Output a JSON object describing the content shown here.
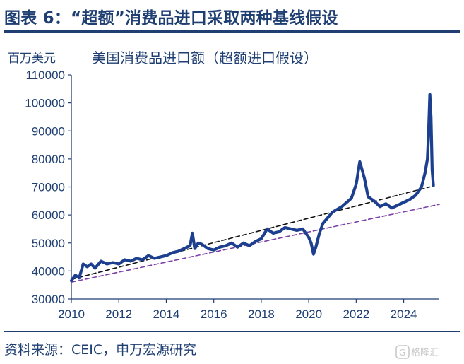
{
  "figure": {
    "title": "图表 6：“超额”消费品进口采取两种基线假设",
    "source": "资料来源：CEIC，申万宏源研究",
    "watermark_text": "格隆汇"
  },
  "colors": {
    "accent": "#1f3f73",
    "series_main": "#1d3f8f",
    "trend_high": "#111111",
    "trend_low": "#7b3fa6"
  },
  "chart_data": {
    "type": "line",
    "title": "美国消费品进口额（超额进口假设）",
    "unit_label": "百万美元",
    "xlabel": "",
    "ylabel": "",
    "xlim": [
      2010,
      2025.5
    ],
    "ylim": [
      30000,
      110000
    ],
    "xticks": [
      "2010",
      "2012",
      "2014",
      "2016",
      "2018",
      "2020",
      "2022",
      "2024"
    ],
    "yticks": [
      "30000",
      "40000",
      "50000",
      "60000",
      "70000",
      "80000",
      "90000",
      "100000",
      "110000"
    ],
    "grid": false,
    "legend": "none",
    "series": [
      {
        "style": "solid",
        "color": "#1d3f8f",
        "x": [
          2010.0,
          2010.17,
          2010.33,
          2010.5,
          2010.67,
          2010.83,
          2011.0,
          2011.25,
          2011.5,
          2011.75,
          2012.0,
          2012.25,
          2012.5,
          2012.75,
          2013.0,
          2013.25,
          2013.5,
          2013.75,
          2014.0,
          2014.25,
          2014.5,
          2014.75,
          2015.0,
          2015.1,
          2015.2,
          2015.35,
          2015.5,
          2015.75,
          2016.0,
          2016.25,
          2016.5,
          2016.75,
          2017.0,
          2017.25,
          2017.5,
          2017.75,
          2018.0,
          2018.25,
          2018.5,
          2018.75,
          2019.0,
          2019.25,
          2019.5,
          2019.75,
          2020.0,
          2020.1,
          2020.2,
          2020.3,
          2020.45,
          2020.6,
          2020.8,
          2021.0,
          2021.2,
          2021.4,
          2021.6,
          2021.8,
          2022.0,
          2022.15,
          2022.25,
          2022.35,
          2022.5,
          2022.75,
          2023.0,
          2023.25,
          2023.5,
          2023.75,
          2024.0,
          2024.25,
          2024.5,
          2024.75,
          2024.9,
          2025.0,
          2025.05,
          2025.1,
          2025.15,
          2025.2,
          2025.25
        ],
        "values": [
          36500,
          38500,
          37500,
          42500,
          41500,
          42500,
          41000,
          43500,
          42500,
          43000,
          42500,
          44000,
          43500,
          44500,
          44000,
          45500,
          44500,
          45000,
          45500,
          46500,
          47000,
          48000,
          49000,
          53500,
          48000,
          50000,
          49500,
          48000,
          47500,
          48500,
          49000,
          50000,
          48500,
          50000,
          49000,
          50500,
          51500,
          55000,
          53500,
          54000,
          55500,
          55000,
          54500,
          55000,
          52000,
          50000,
          46000,
          48500,
          53500,
          57000,
          59000,
          61000,
          62000,
          63000,
          64500,
          66000,
          71000,
          79000,
          76000,
          73000,
          66500,
          65000,
          63000,
          64000,
          62500,
          63500,
          64500,
          65500,
          67000,
          70000,
          75000,
          80000,
          90000,
          103000,
          95000,
          76000,
          70500
        ]
      },
      {
        "style": "dashed",
        "color": "#111111",
        "x": [
          2010.0,
          2025.1
        ],
        "values": [
          37000,
          70000
        ]
      },
      {
        "style": "dashed",
        "color": "#7b3fa6",
        "x": [
          2010.0,
          2025.5
        ],
        "values": [
          36000,
          63800
        ]
      }
    ]
  }
}
